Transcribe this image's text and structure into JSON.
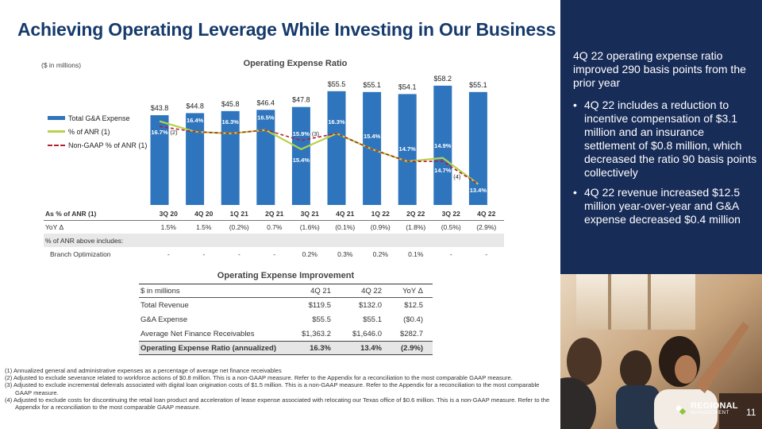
{
  "slide": {
    "title": "Achieving Operating Leverage While Investing in Our Business",
    "page_number": "11"
  },
  "chart_data": {
    "type": "bar",
    "title": "Operating Expense Ratio",
    "unit_note": "($ in millions)",
    "categories": [
      "3Q 20",
      "4Q 20",
      "1Q 21",
      "2Q 21",
      "3Q 21",
      "4Q 21",
      "1Q 22",
      "2Q 22",
      "3Q 22",
      "4Q 22"
    ],
    "series": [
      {
        "name": "Total G&A Expense",
        "kind": "bar",
        "values": [
          43.8,
          44.8,
          45.8,
          46.4,
          47.8,
          55.5,
          55.1,
          54.1,
          58.2,
          55.1
        ],
        "labels": [
          "$43.8",
          "$44.8",
          "$45.8",
          "$46.4",
          "$47.8",
          "$55.5",
          "$55.1",
          "$54.1",
          "$58.2",
          "$55.1"
        ],
        "color": "#2e75bd"
      },
      {
        "name": "% of ANR (1)",
        "kind": "line",
        "values": [
          17.0,
          16.4,
          16.3,
          16.5,
          15.4,
          16.3,
          15.4,
          14.7,
          14.9,
          13.4
        ],
        "labels": [
          "17.0%",
          "16.4%",
          "16.3%",
          "16.5%",
          "15.4%",
          "16.3%",
          "15.4%",
          "14.7%",
          "14.9%",
          "13.4%"
        ],
        "color": "#b7d24a"
      },
      {
        "name": "Non-GAAP % of ANR (1)",
        "kind": "dashed-line",
        "values": [
          16.7,
          16.4,
          16.3,
          16.5,
          15.9,
          16.3,
          15.4,
          14.7,
          14.7,
          13.4
        ],
        "labels": [
          "16.7%",
          "",
          "",
          "",
          "15.9%",
          "",
          "",
          "",
          "14.7%",
          ""
        ],
        "footnote_marks": [
          "(2)",
          "",
          "",
          "",
          "(3)",
          "",
          "",
          "",
          "(4)",
          ""
        ],
        "color": "#b51e2c"
      }
    ],
    "legend": [
      "Total G&A Expense",
      "% of ANR (1)",
      "Non-GAAP % of ANR (1)"
    ],
    "ylim": [
      0,
      60
    ],
    "grid": false
  },
  "ratio_table": {
    "header_label": "As % of ANR (1)",
    "quarters": [
      "3Q 20",
      "4Q 20",
      "1Q 21",
      "2Q 21",
      "3Q 21",
      "4Q 21",
      "1Q 22",
      "2Q 22",
      "3Q 22",
      "4Q 22"
    ],
    "yoy_label": "YoY Δ",
    "yoy": [
      "1.5%",
      "1.5%",
      "(0.2%)",
      "0.7%",
      "(1.6%)",
      "(0.1%)",
      "(0.9%)",
      "(1.8%)",
      "(0.5%)",
      "(2.9%)"
    ],
    "includes_label": "% of ANR above includes:",
    "branch_label": "Branch Optimization",
    "branch": [
      "-",
      "-",
      "-",
      "-",
      "0.2%",
      "0.3%",
      "0.2%",
      "0.1%",
      "-",
      "-"
    ]
  },
  "improvement": {
    "title": "Operating Expense Improvement",
    "headers": [
      "$ in millions",
      "4Q 21",
      "4Q 22",
      "YoY Δ"
    ],
    "rows": [
      [
        "Total Revenue",
        "$119.5",
        "$132.0",
        "$12.5"
      ],
      [
        "G&A Expense",
        "$55.5",
        "$55.1",
        "($0.4)"
      ],
      [
        "Average Net Finance Receivables",
        "$1,363.2",
        "$1,646.0",
        "$282.7"
      ],
      [
        "Operating Expense Ratio (annualized)",
        "16.3%",
        "13.4%",
        "(2.9%)"
      ]
    ]
  },
  "footnotes": [
    "(1) Annualized general and administrative expenses as a percentage of average net finance receivables",
    "(2) Adjusted to exclude severance related to workforce actions of $0.8 million. This is a non-GAAP measure. Refer to the Appendix for a reconciliation to the most comparable GAAP measure.",
    "(3) Adjusted to exclude incremental deferrals associated with digital loan origination costs of $1.5 million. This is a non-GAAP measure. Refer to the Appendix for a reconciliation to the most comparable GAAP measure.",
    "(4) Adjusted to exclude costs for discontinuing the retail loan product and acceleration of lease expense associated with relocating our Texas office of $0.6 million. This is a non-GAAP measure. Refer to the Appendix for a reconciliation to the most comparable GAAP measure."
  ],
  "sidebar": {
    "headline": "4Q 22 operating expense ratio improved 290 basis points from the prior year",
    "bullets": [
      "4Q 22 includes a reduction to incentive compensation of $3.1 million and an insurance settlement of $0.8 million, which decreased the ratio 90 basis points collectively",
      "4Q 22 revenue increased $12.5 million year-over-year and G&A expense decreased $0.4 million"
    ]
  },
  "logo": {
    "line1": "REGIONAL",
    "line2": "MANAGEMENT"
  },
  "colors": {
    "navy": "#182c58",
    "title": "#163a6b",
    "bar": "#2e75bd",
    "line": "#b7d24a",
    "dashed": "#b51e2c"
  }
}
